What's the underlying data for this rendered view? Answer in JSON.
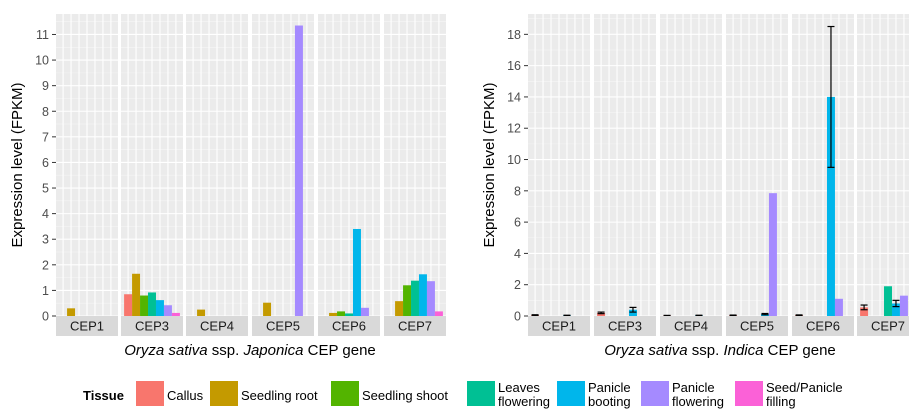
{
  "chart_data": [
    {
      "type": "bar",
      "facets": [
        "CEP1",
        "CEP3",
        "CEP4",
        "CEP5",
        "CEP6",
        "CEP7"
      ],
      "xlabel_parts": [
        "Oryza sativa",
        " ssp. ",
        "Japonica",
        " CEP gene"
      ],
      "ylabel": "Expression level (FPKM)",
      "ylim": [
        0,
        11.8
      ],
      "yticks": [
        "0",
        "1",
        "2",
        "3",
        "4",
        "5",
        "6",
        "7",
        "8",
        "9",
        "10",
        "11"
      ],
      "grid": true,
      "series": [
        {
          "name": "Callus",
          "values": [
            0,
            0.85,
            0,
            0,
            0,
            0
          ]
        },
        {
          "name": "Seedling root",
          "values": [
            0.3,
            1.65,
            0.25,
            0.52,
            0.12,
            0.58
          ]
        },
        {
          "name": "Seedling shoot",
          "values": [
            0,
            0.8,
            0,
            0,
            0.18,
            1.2
          ]
        },
        {
          "name": "Leaves flowering",
          "values": [
            0,
            0.92,
            0,
            0,
            0.1,
            1.38
          ]
        },
        {
          "name": "Panicle booting",
          "values": [
            0,
            0.62,
            0,
            0,
            3.4,
            1.63
          ]
        },
        {
          "name": "Panicle flowering",
          "values": [
            0,
            0.42,
            0,
            11.35,
            0.32,
            1.36
          ]
        },
        {
          "name": "Seed/Panicle filling",
          "values": [
            0,
            0.12,
            0,
            0,
            0,
            0.18
          ]
        }
      ]
    },
    {
      "type": "bar",
      "facets": [
        "CEP1",
        "CEP3",
        "CEP4",
        "CEP5",
        "CEP6",
        "CEP7"
      ],
      "xlabel_parts": [
        "Oryza sativa",
        " ssp. ",
        "Indica",
        " CEP gene"
      ],
      "ylabel": "Expression level (FPKM)",
      "ylim": [
        0,
        19.3
      ],
      "yticks": [
        "0",
        "2",
        "4",
        "6",
        "8",
        "10",
        "12",
        "14",
        "16",
        "18"
      ],
      "grid": true,
      "series": [
        {
          "name": "Callus",
          "values": [
            0.05,
            0.2,
            0.02,
            0.04,
            0.05,
            0.55
          ],
          "errors": [
            0.03,
            0.05,
            0.02,
            0.02,
            0.02,
            0.15
          ]
        },
        {
          "name": "Seedling root",
          "values": [
            0,
            0,
            0,
            0,
            0,
            0
          ],
          "errors": [
            0,
            0,
            0,
            0,
            0,
            0
          ]
        },
        {
          "name": "Seedling shoot",
          "values": [
            0,
            0,
            0,
            0,
            0,
            0
          ],
          "errors": [
            0,
            0,
            0,
            0,
            0,
            0
          ]
        },
        {
          "name": "Leaves flowering",
          "values": [
            0,
            0,
            0,
            0,
            0,
            1.9
          ],
          "errors": [
            0,
            0,
            0,
            0,
            0,
            0
          ]
        },
        {
          "name": "Panicle booting",
          "values": [
            0.03,
            0.4,
            0.03,
            0.12,
            14.0,
            0.8
          ],
          "errors": [
            0.02,
            0.15,
            0.02,
            0.04,
            4.5,
            0.2
          ]
        },
        {
          "name": "Panicle flowering",
          "values": [
            0,
            0,
            0,
            7.85,
            1.1,
            1.3
          ],
          "errors": [
            0,
            0,
            0,
            0,
            0,
            0
          ]
        },
        {
          "name": "Seed/Panicle filling",
          "values": [
            0,
            0,
            0,
            0,
            0,
            0
          ],
          "errors": [
            0,
            0,
            0,
            0,
            0,
            0
          ]
        }
      ]
    }
  ],
  "legend": {
    "title": "Tissue",
    "items": [
      {
        "lines": [
          "Callus"
        ],
        "color": "#F8766D"
      },
      {
        "lines": [
          "Seedling root"
        ],
        "color": "#C49A00"
      },
      {
        "lines": [
          "Seedling shoot"
        ],
        "color": "#53B400"
      },
      {
        "lines": [
          "Leaves",
          "flowering"
        ],
        "color": "#00C094"
      },
      {
        "lines": [
          "Panicle",
          "booting"
        ],
        "color": "#00B6EB"
      },
      {
        "lines": [
          "Panicle",
          "flowering"
        ],
        "color": "#A58AFF"
      },
      {
        "lines": [
          "Seed/Panicle",
          "filling"
        ],
        "color": "#FB61D7"
      }
    ]
  }
}
